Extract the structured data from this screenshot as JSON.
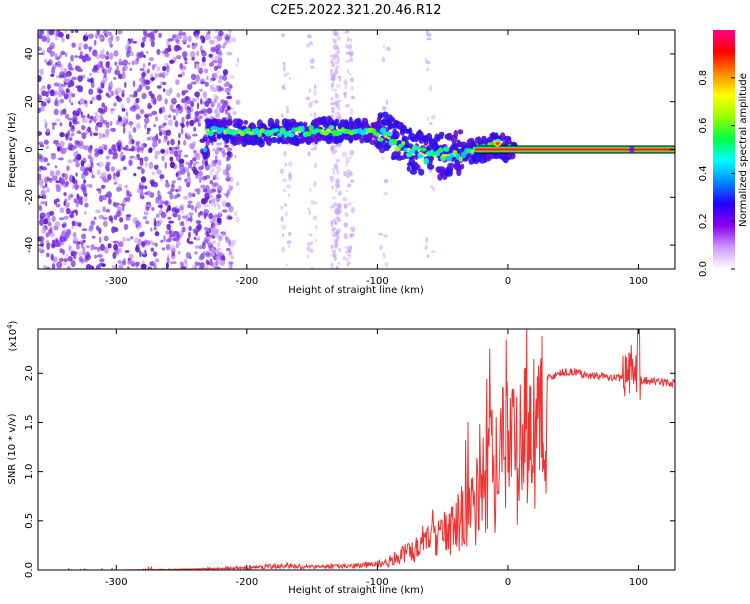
{
  "title": "C2E5.2022.321.20.46.R12",
  "chart_data": [
    {
      "type": "heatmap",
      "xlabel": "Height of straight line (km)",
      "ylabel": "Frequency (Hz)",
      "xlim": [
        -360,
        128
      ],
      "ylim": [
        -50,
        50
      ],
      "xticks": [
        -300,
        -200,
        -100,
        0,
        100
      ],
      "yticks": [
        -40,
        -20,
        0,
        20,
        40
      ],
      "colorbar": {
        "label": "Normalized spectral amplitude",
        "range": [
          0.0,
          1.0
        ],
        "ticks": [
          "0.0",
          "0.2",
          "0.4",
          "0.6",
          "0.8"
        ],
        "colormap": [
          "#ffffff",
          "#cc99ff",
          "#8800ee",
          "#2200ff",
          "#0088ff",
          "#00ffff",
          "#00ff44",
          "#99ff00",
          "#ffff00",
          "#ff8800",
          "#ff0000",
          "#ff0088"
        ]
      },
      "signal_track": [
        {
          "x": -230,
          "y": 8
        },
        {
          "x": -200,
          "y": 7
        },
        {
          "x": -170,
          "y": 7
        },
        {
          "x": -140,
          "y": 8
        },
        {
          "x": -110,
          "y": 8
        },
        {
          "x": -95,
          "y": 6
        },
        {
          "x": -80,
          "y": 1
        },
        {
          "x": -60,
          "y": -3
        },
        {
          "x": -40,
          "y": -2
        },
        {
          "x": -20,
          "y": 0
        },
        {
          "x": -8,
          "y": 2
        },
        {
          "x": 0,
          "y": 0
        },
        {
          "x": 128,
          "y": 0
        }
      ]
    },
    {
      "type": "line",
      "xlabel": "Height of straight line (km)",
      "ylabel": "SNR (10 * v/v)",
      "scale_label": "(x10",
      "scale_exp": "4",
      "scale_close": ")",
      "xlim": [
        -360,
        128
      ],
      "ylim": [
        0,
        2.45
      ],
      "xticks": [
        -300,
        -200,
        -100,
        0,
        100
      ],
      "yticks": [
        "0.0",
        "0.5",
        "1.0",
        "1.5",
        "2.0"
      ],
      "color": "#ee3333",
      "series": [
        {
          "x": [
            -360,
            -300,
            -250,
            -220,
            -200,
            -180,
            -160,
            -140,
            -120,
            -100,
            -90,
            -80,
            -70,
            -60,
            -50,
            -40,
            -30,
            -20,
            -10,
            0,
            10,
            20,
            30,
            40,
            50,
            60,
            70,
            80,
            90,
            95,
            100,
            110,
            128
          ],
          "values": [
            0.0,
            0.0,
            0.01,
            0.02,
            0.03,
            0.05,
            0.05,
            0.04,
            0.05,
            0.08,
            0.12,
            0.2,
            0.3,
            0.4,
            0.5,
            0.6,
            0.8,
            1.1,
            1.4,
            1.6,
            1.75,
            1.85,
            1.95,
            2.0,
            2.02,
            1.98,
            1.97,
            1.96,
            1.95,
            2.05,
            1.93,
            1.92,
            1.9
          ]
        }
      ]
    }
  ]
}
